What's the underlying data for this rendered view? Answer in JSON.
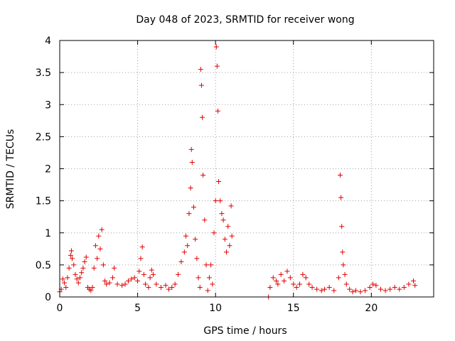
{
  "chart_data": {
    "type": "scatter",
    "title": "Day 048 of 2023, SRMTID for receiver wong",
    "xlabel": "GPS time / hours",
    "ylabel": "SRMTID / TECUs",
    "xlim": [
      0,
      24
    ],
    "ylim": [
      0,
      4
    ],
    "x_ticks": [
      0,
      5,
      10,
      15,
      20
    ],
    "x_tick_labels": [
      "0",
      "5",
      "10",
      "15",
      "20"
    ],
    "y_ticks": [
      0,
      0.5,
      1,
      1.5,
      2,
      2.5,
      3,
      3.5,
      4
    ],
    "y_tick_labels": [
      "0",
      "0.5",
      "1",
      "1.5",
      "2",
      "2.5",
      "3",
      "3.5",
      "4"
    ],
    "grid": true,
    "marker": "plus",
    "colors": {
      "series": "#e00000",
      "grid": "#a0a0a0",
      "axis": "#000000"
    },
    "series": [
      {
        "name": "SRMTID",
        "points": [
          [
            0.0,
            0.08
          ],
          [
            0.1,
            0.12
          ],
          [
            0.2,
            0.28
          ],
          [
            0.3,
            0.22
          ],
          [
            0.4,
            0.15
          ],
          [
            0.5,
            0.3
          ],
          [
            0.6,
            0.45
          ],
          [
            0.7,
            0.65
          ],
          [
            0.75,
            0.72
          ],
          [
            0.8,
            0.6
          ],
          [
            0.9,
            0.5
          ],
          [
            1.0,
            0.35
          ],
          [
            1.1,
            0.28
          ],
          [
            1.2,
            0.22
          ],
          [
            1.3,
            0.3
          ],
          [
            1.4,
            0.38
          ],
          [
            1.5,
            0.45
          ],
          [
            1.6,
            0.55
          ],
          [
            1.7,
            0.62
          ],
          [
            1.8,
            0.15
          ],
          [
            1.9,
            0.12
          ],
          [
            2.0,
            0.1
          ],
          [
            2.1,
            0.15
          ],
          [
            2.2,
            0.45
          ],
          [
            2.3,
            0.8
          ],
          [
            2.4,
            0.6
          ],
          [
            2.5,
            0.95
          ],
          [
            2.6,
            0.75
          ],
          [
            2.7,
            1.05
          ],
          [
            2.8,
            0.5
          ],
          [
            2.9,
            0.25
          ],
          [
            3.0,
            0.2
          ],
          [
            3.2,
            0.22
          ],
          [
            3.4,
            0.3
          ],
          [
            3.5,
            0.45
          ],
          [
            3.7,
            0.2
          ],
          [
            4.0,
            0.18
          ],
          [
            4.2,
            0.2
          ],
          [
            4.4,
            0.25
          ],
          [
            4.6,
            0.28
          ],
          [
            4.8,
            0.3
          ],
          [
            5.0,
            0.25
          ],
          [
            5.1,
            0.4
          ],
          [
            5.2,
            0.6
          ],
          [
            5.3,
            0.78
          ],
          [
            5.4,
            0.35
          ],
          [
            5.5,
            0.2
          ],
          [
            5.7,
            0.15
          ],
          [
            5.8,
            0.3
          ],
          [
            5.9,
            0.42
          ],
          [
            6.0,
            0.35
          ],
          [
            6.2,
            0.2
          ],
          [
            6.5,
            0.15
          ],
          [
            6.8,
            0.18
          ],
          [
            7.0,
            0.12
          ],
          [
            7.2,
            0.15
          ],
          [
            7.4,
            0.2
          ],
          [
            7.6,
            0.35
          ],
          [
            7.8,
            0.55
          ],
          [
            8.0,
            0.7
          ],
          [
            8.1,
            0.95
          ],
          [
            8.2,
            0.8
          ],
          [
            8.3,
            1.3
          ],
          [
            8.4,
            1.7
          ],
          [
            8.45,
            2.3
          ],
          [
            8.5,
            2.1
          ],
          [
            8.6,
            1.4
          ],
          [
            8.7,
            0.9
          ],
          [
            8.8,
            0.6
          ],
          [
            8.9,
            0.3
          ],
          [
            9.0,
            0.15
          ],
          [
            9.05,
            3.55
          ],
          [
            9.1,
            3.3
          ],
          [
            9.15,
            2.8
          ],
          [
            9.2,
            1.9
          ],
          [
            9.3,
            1.2
          ],
          [
            9.4,
            0.5
          ],
          [
            9.5,
            0.1
          ],
          [
            9.6,
            0.3
          ],
          [
            9.7,
            0.5
          ],
          [
            9.8,
            0.2
          ],
          [
            9.9,
            1.0
          ],
          [
            10.0,
            1.5
          ],
          [
            10.05,
            3.9
          ],
          [
            10.1,
            3.6
          ],
          [
            10.15,
            2.9
          ],
          [
            10.2,
            1.8
          ],
          [
            10.3,
            1.5
          ],
          [
            10.4,
            1.3
          ],
          [
            10.5,
            1.2
          ],
          [
            10.6,
            0.9
          ],
          [
            10.7,
            0.7
          ],
          [
            10.8,
            1.1
          ],
          [
            10.9,
            0.8
          ],
          [
            11.0,
            1.42
          ],
          [
            11.05,
            0.95
          ],
          [
            13.4,
            0.0
          ],
          [
            13.5,
            0.15
          ],
          [
            13.7,
            0.3
          ],
          [
            13.9,
            0.25
          ],
          [
            14.0,
            0.2
          ],
          [
            14.2,
            0.35
          ],
          [
            14.4,
            0.25
          ],
          [
            14.6,
            0.4
          ],
          [
            14.8,
            0.3
          ],
          [
            15.0,
            0.2
          ],
          [
            15.2,
            0.15
          ],
          [
            15.4,
            0.2
          ],
          [
            15.6,
            0.35
          ],
          [
            15.8,
            0.3
          ],
          [
            16.0,
            0.2
          ],
          [
            16.2,
            0.15
          ],
          [
            16.5,
            0.12
          ],
          [
            16.8,
            0.1
          ],
          [
            17.0,
            0.12
          ],
          [
            17.3,
            0.15
          ],
          [
            17.6,
            0.1
          ],
          [
            17.9,
            0.3
          ],
          [
            18.0,
            1.9
          ],
          [
            18.05,
            1.55
          ],
          [
            18.1,
            1.1
          ],
          [
            18.15,
            0.7
          ],
          [
            18.2,
            0.5
          ],
          [
            18.3,
            0.35
          ],
          [
            18.4,
            0.2
          ],
          [
            18.6,
            0.12
          ],
          [
            18.8,
            0.08
          ],
          [
            19.0,
            0.1
          ],
          [
            19.3,
            0.08
          ],
          [
            19.6,
            0.1
          ],
          [
            19.9,
            0.15
          ],
          [
            20.1,
            0.2
          ],
          [
            20.3,
            0.18
          ],
          [
            20.6,
            0.12
          ],
          [
            20.9,
            0.1
          ],
          [
            21.2,
            0.12
          ],
          [
            21.5,
            0.15
          ],
          [
            21.8,
            0.12
          ],
          [
            22.1,
            0.15
          ],
          [
            22.4,
            0.2
          ],
          [
            22.7,
            0.25
          ],
          [
            22.8,
            0.18
          ]
        ]
      }
    ]
  }
}
